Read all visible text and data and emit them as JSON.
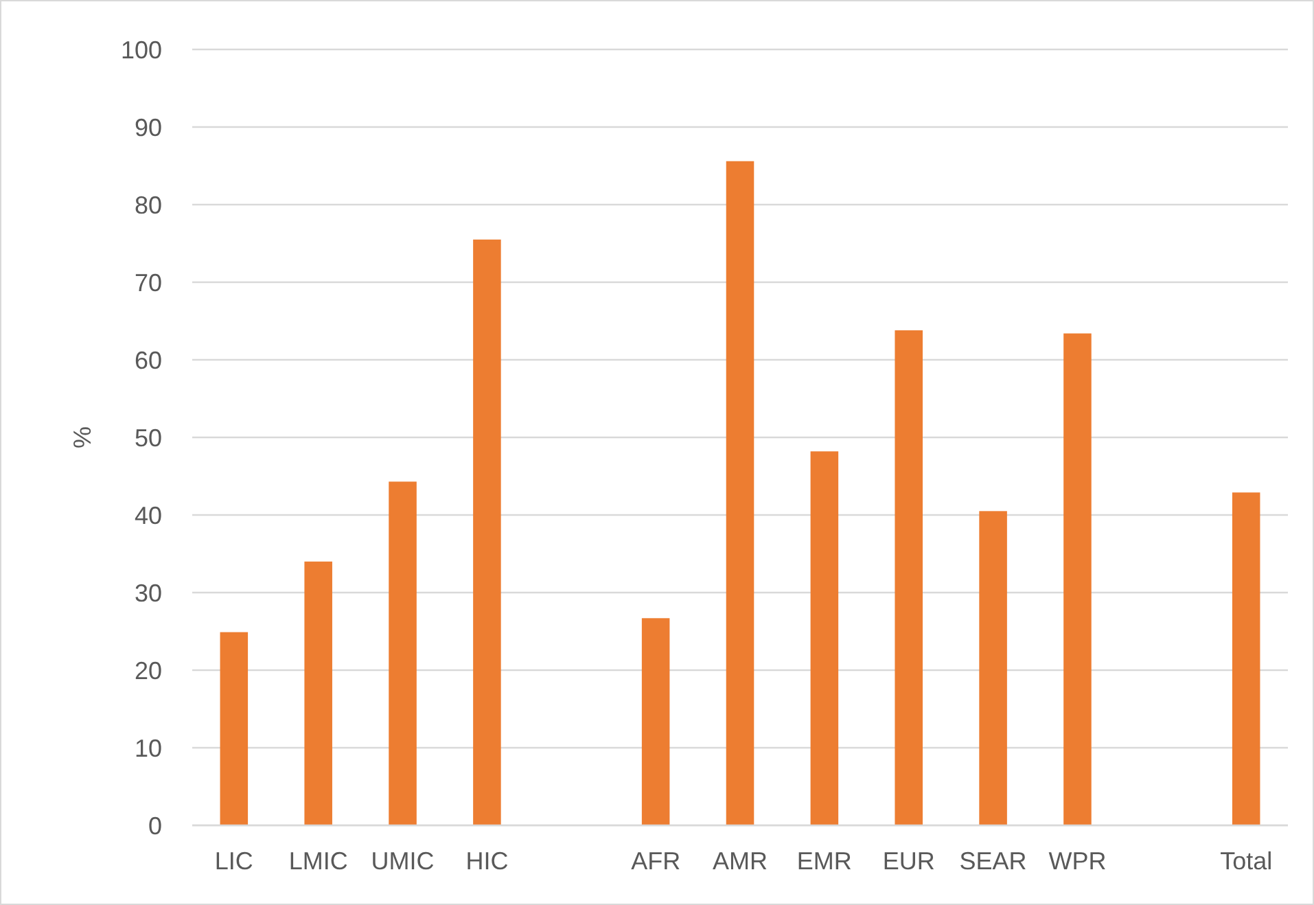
{
  "chart_data": {
    "type": "bar",
    "ylabel": "%",
    "categories": [
      "LIC",
      "LMIC",
      "UMIC",
      "HIC",
      null,
      "AFR",
      "AMR",
      "EMR",
      "EUR",
      "SEAR",
      "WPR",
      null,
      "Total"
    ],
    "values": [
      24.9,
      34.0,
      44.3,
      75.5,
      null,
      26.7,
      85.6,
      48.2,
      63.8,
      40.5,
      63.4,
      null,
      42.9
    ],
    "color": "#ed7d31",
    "ylim": [
      0,
      100
    ],
    "yticks": [
      0,
      10,
      20,
      30,
      40,
      50,
      60,
      70,
      80,
      90,
      100
    ],
    "grid": "y"
  }
}
